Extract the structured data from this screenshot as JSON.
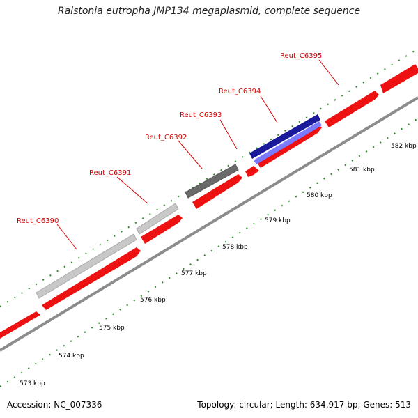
{
  "title": "Ralstonia eutropha JMP134 megaplasmid, complete sequence",
  "footer": {
    "accession": "Accession: NC_007336",
    "stats": "Topology: circular; Length: 634,917 bp; Genes: 513"
  },
  "colors": {
    "forward_cds": "#ee1111",
    "grey_light": "#c8c8c8",
    "grey_dark": "#6a6a6a",
    "blue": "#1a1a9a",
    "backbone": "#8c8c8c",
    "tick": "#2a8a2a",
    "label": "#d00000"
  },
  "scale_ticks": [
    "573 kbp",
    "574 kbp",
    "575 kbp",
    "576 kbp",
    "577 kbp",
    "578 kbp",
    "579 kbp",
    "580 kbp",
    "581 kbp",
    "582 kbp"
  ],
  "gene_labels": [
    "Reut_C6390",
    "Reut_C6391",
    "Reut_C6392",
    "Reut_C6393",
    "Reut_C6394",
    "Reut_C6395"
  ]
}
